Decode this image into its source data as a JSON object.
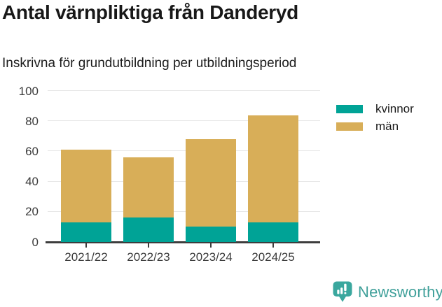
{
  "title": "Antal värnpliktiga från Danderyd",
  "subtitle": "Inskrivna för grundutbildning per utbildningsperiod",
  "chart_data": {
    "type": "bar",
    "stacked": true,
    "title": "Antal värnpliktiga från Danderyd",
    "subtitle": "Inskrivna för grundutbildning per utbildningsperiod",
    "categories": [
      "2021/22",
      "2022/23",
      "2023/24",
      "2024/25"
    ],
    "series": [
      {
        "name": "kvinnor",
        "color": "#00a396",
        "values": [
          13,
          16,
          10,
          13
        ]
      },
      {
        "name": "män",
        "color": "#d8ae58",
        "values": [
          48,
          40,
          58,
          71
        ]
      }
    ],
    "totals": [
      61,
      56,
      68,
      84
    ],
    "xlabel": "",
    "ylabel": "",
    "ylim": [
      0,
      100
    ],
    "yticks": [
      0,
      20,
      40,
      60,
      80,
      100
    ],
    "grid": true,
    "legend_position": "top-right"
  },
  "footer": {
    "brand": "Newsworthy",
    "brand_color": "#40a09a",
    "logo_color": "#3aa79e",
    "logo_icon": "bar-chart-exclamation-badge"
  },
  "colors": {
    "background": "#ffffff",
    "gridline": "#e7e7e7",
    "axis": "#3d3d3d",
    "text": "#1a1a1a"
  }
}
